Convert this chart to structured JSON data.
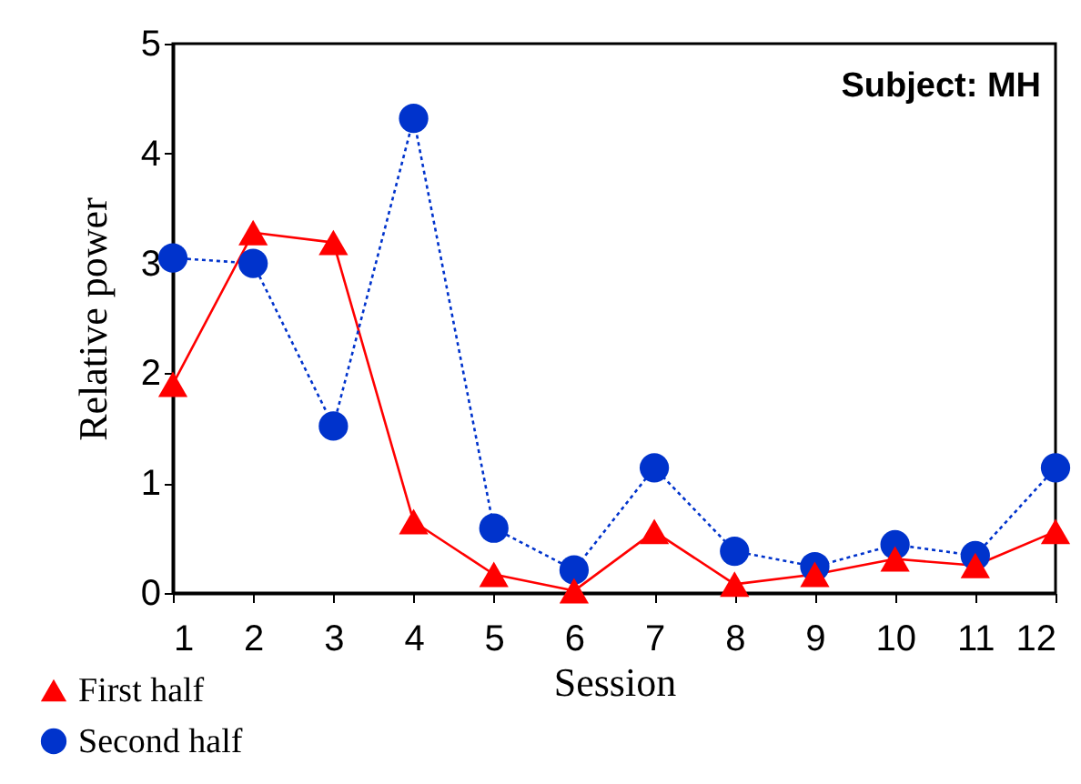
{
  "chart_data": {
    "type": "line",
    "xlabel": "Session",
    "ylabel": "Relative power",
    "annotations": [
      "Subject:  MH"
    ],
    "x": [
      1,
      2,
      3,
      4,
      5,
      6,
      7,
      8,
      9,
      10,
      11,
      12
    ],
    "xlim": [
      1,
      12
    ],
    "xticks": [
      1,
      2,
      3,
      4,
      5,
      6,
      7,
      8,
      9,
      10,
      11,
      12
    ],
    "ylim": [
      0,
      5
    ],
    "yticks": [
      0,
      1,
      2,
      3,
      4,
      5
    ],
    "grid": false,
    "legend": "bottom left",
    "series": [
      {
        "name": "First half",
        "color": "#ff0000",
        "marker": "triangle",
        "line_style": "solid",
        "values": [
          1.9,
          3.28,
          3.19,
          0.65,
          0.17,
          0.02,
          0.56,
          0.08,
          0.17,
          0.31,
          0.25,
          0.56
        ]
      },
      {
        "name": "Second half",
        "color": "#0033cc",
        "marker": "circle",
        "line_style": "dotted",
        "values": [
          3.05,
          3.0,
          1.52,
          4.32,
          0.59,
          0.21,
          1.14,
          0.38,
          0.24,
          0.44,
          0.34,
          1.14
        ]
      }
    ]
  }
}
